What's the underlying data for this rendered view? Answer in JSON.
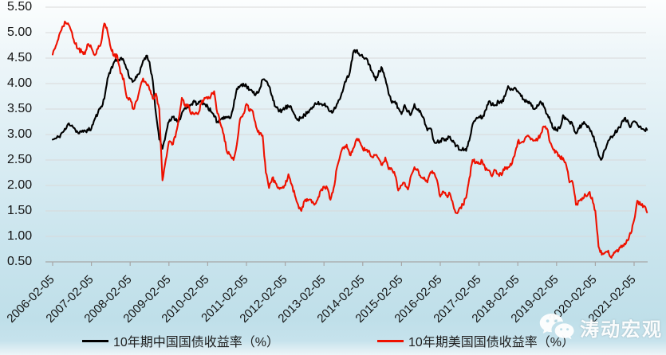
{
  "chart_data": {
    "type": "line",
    "title": "",
    "grid": "horizontal",
    "legend_position": "bottom",
    "x_axis": {
      "tick_labels": [
        "2006-02-05",
        "2007-02-05",
        "2008-02-05",
        "2009-02-05",
        "2010-02-05",
        "2011-02-05",
        "2012-02-05",
        "2013-02-05",
        "2014-02-05",
        "2015-02-05",
        "2016-02-05",
        "2017-02-05",
        "2018-02-05",
        "2019-02-05",
        "2020-02-05",
        "2021-02-05"
      ],
      "start": "2006-02",
      "end": "2021-06",
      "frequency": "monthly"
    },
    "y_axis": {
      "tick_labels": [
        "0.50",
        "1.00",
        "1.50",
        "2.00",
        "2.50",
        "3.00",
        "3.50",
        "4.00",
        "4.50",
        "5.00",
        "5.50"
      ],
      "min": 0.5,
      "max": 5.5,
      "step": 0.5,
      "unit": "%"
    },
    "series": [
      {
        "name": "10年期中国国债收益率（%）",
        "color": "#000000",
        "values": [
          2.9,
          2.92,
          2.96,
          3.04,
          3.1,
          3.22,
          3.18,
          3.1,
          3.02,
          3.05,
          3.08,
          3.08,
          3.12,
          3.3,
          3.42,
          3.55,
          3.7,
          4.1,
          4.28,
          4.42,
          4.46,
          4.5,
          4.45,
          4.28,
          4.1,
          4.05,
          4.12,
          4.22,
          4.45,
          4.55,
          4.42,
          4.05,
          3.4,
          2.9,
          2.72,
          3.0,
          3.25,
          3.35,
          3.28,
          3.25,
          3.42,
          3.52,
          3.55,
          3.6,
          3.64,
          3.6,
          3.66,
          3.6,
          3.55,
          3.45,
          3.35,
          3.25,
          3.3,
          3.35,
          3.35,
          3.32,
          3.55,
          3.9,
          3.95,
          4.0,
          3.95,
          3.88,
          3.82,
          3.8,
          3.88,
          4.08,
          4.05,
          3.95,
          3.75,
          3.55,
          3.45,
          3.48,
          3.52,
          3.55,
          3.5,
          3.38,
          3.3,
          3.32,
          3.38,
          3.45,
          3.52,
          3.58,
          3.6,
          3.6,
          3.58,
          3.55,
          3.45,
          3.48,
          3.6,
          3.7,
          3.9,
          4.1,
          4.22,
          4.6,
          4.65,
          4.55,
          4.52,
          4.5,
          4.38,
          4.22,
          4.06,
          4.25,
          4.3,
          4.1,
          3.8,
          3.62,
          3.65,
          3.52,
          3.4,
          3.58,
          3.45,
          3.4,
          3.6,
          3.48,
          3.42,
          3.3,
          3.08,
          3.12,
          2.88,
          2.85,
          2.88,
          2.92,
          2.92,
          2.96,
          2.88,
          2.78,
          2.7,
          2.74,
          2.68,
          2.88,
          3.2,
          3.3,
          3.35,
          3.32,
          3.48,
          3.65,
          3.58,
          3.58,
          3.65,
          3.62,
          3.75,
          3.95,
          3.9,
          3.92,
          3.85,
          3.75,
          3.68,
          3.65,
          3.62,
          3.5,
          3.58,
          3.65,
          3.55,
          3.4,
          3.28,
          3.12,
          3.1,
          3.12,
          3.38,
          3.3,
          3.25,
          3.18,
          3.02,
          3.12,
          3.22,
          3.2,
          3.14,
          3.0,
          2.85,
          2.6,
          2.52,
          2.7,
          2.88,
          2.96,
          3.02,
          3.12,
          3.2,
          3.32,
          3.28,
          3.15,
          3.26,
          3.2,
          3.16,
          3.1,
          3.09
        ]
      },
      {
        "name": "10年期美国国债收益率（%）",
        "color": "#ee1100",
        "values": [
          4.57,
          4.74,
          4.95,
          5.12,
          5.2,
          5.15,
          5.0,
          4.78,
          4.68,
          4.62,
          4.58,
          4.78,
          4.7,
          4.56,
          4.68,
          4.8,
          5.18,
          5.02,
          4.7,
          4.54,
          4.55,
          4.2,
          4.1,
          3.72,
          3.7,
          3.5,
          3.66,
          3.9,
          4.1,
          4.0,
          3.88,
          3.7,
          3.8,
          3.5,
          2.1,
          2.5,
          2.86,
          2.8,
          2.95,
          3.3,
          3.72,
          3.56,
          3.58,
          3.4,
          3.4,
          3.4,
          3.6,
          3.72,
          3.7,
          3.76,
          3.85,
          3.42,
          3.2,
          3.0,
          2.65,
          2.6,
          2.5,
          2.8,
          3.3,
          3.4,
          3.6,
          3.46,
          3.45,
          3.15,
          3.0,
          2.98,
          2.25,
          1.95,
          2.15,
          2.05,
          1.96,
          1.95,
          2.0,
          2.22,
          2.02,
          1.8,
          1.62,
          1.5,
          1.7,
          1.7,
          1.72,
          1.62,
          1.72,
          1.9,
          1.98,
          1.95,
          1.72,
          1.95,
          2.35,
          2.58,
          2.75,
          2.8,
          2.6,
          2.72,
          2.9,
          2.86,
          2.72,
          2.7,
          2.68,
          2.55,
          2.6,
          2.52,
          2.4,
          2.55,
          2.32,
          2.32,
          2.2,
          1.9,
          2.0,
          2.05,
          1.92,
          2.2,
          2.36,
          2.32,
          2.16,
          2.16,
          2.06,
          2.26,
          2.25,
          2.1,
          1.78,
          1.88,
          1.8,
          1.84,
          1.62,
          1.46,
          1.56,
          1.62,
          1.76,
          2.14,
          2.5,
          2.44,
          2.42,
          2.48,
          2.3,
          2.3,
          2.18,
          2.3,
          2.22,
          2.2,
          2.36,
          2.36,
          2.4,
          2.58,
          2.86,
          2.84,
          2.88,
          2.98,
          2.9,
          2.88,
          2.88,
          3.0,
          3.16,
          3.12,
          2.84,
          2.7,
          2.66,
          2.56,
          2.54,
          2.4,
          2.06,
          2.06,
          1.62,
          1.7,
          1.76,
          1.8,
          1.86,
          1.76,
          1.5,
          0.8,
          0.64,
          0.68,
          0.72,
          0.58,
          0.68,
          0.7,
          0.82,
          0.86,
          0.92,
          1.06,
          1.32,
          1.7,
          1.62,
          1.6,
          1.47
        ]
      }
    ]
  },
  "watermark": {
    "text": "涛动宏观",
    "icon": "wechat-icon"
  },
  "colors": {
    "background_top": "#fcfefe",
    "background_bottom": "#bfdfe9",
    "gridline": "#d9d9d9",
    "axis": "#a6a6a6",
    "china_line": "#000000",
    "us_line": "#ee1100",
    "tick_text": "#141414"
  }
}
